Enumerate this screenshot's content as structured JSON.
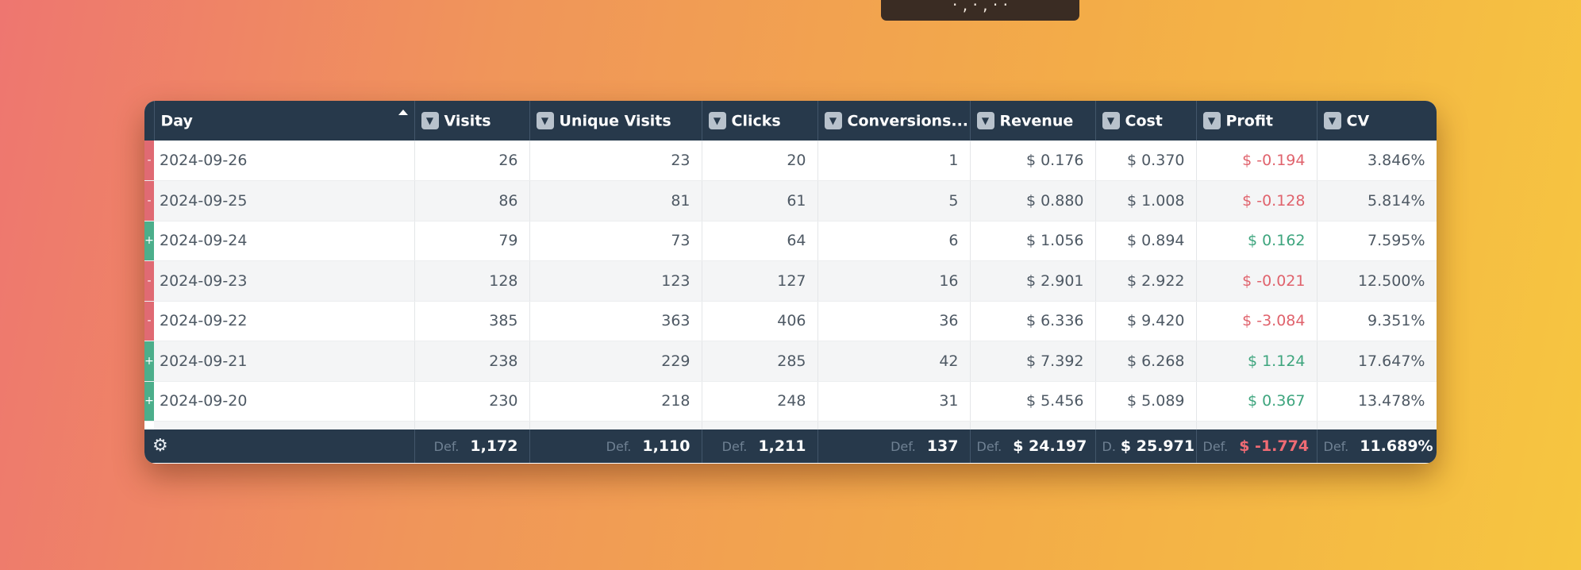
{
  "top_tab": {
    "text": "· , · , · ·"
  },
  "columns": {
    "day": "Day",
    "visits": "Visits",
    "unique_visits": "Unique Visits",
    "clicks": "Clicks",
    "conversions": "Conversions...",
    "revenue": "Revenue",
    "cost": "Cost",
    "profit": "Profit",
    "cv": "CV"
  },
  "icons": {
    "filter": "filter-dropdown-icon",
    "sort": "sort-ascending-icon",
    "settings": "gear-icon"
  },
  "colors": {
    "header_bg": "#27394b",
    "negative": "#e06a73",
    "positive": "#4cae8b"
  },
  "rows": [
    {
      "indicator": "-",
      "trend": "neg",
      "day": "2024-09-26",
      "visits": "26",
      "unique_visits": "23",
      "clicks": "20",
      "conversions": "1",
      "revenue": "$ 0.176",
      "cost": "$ 0.370",
      "profit": "$ -0.194",
      "cv": "3.846%"
    },
    {
      "indicator": "-",
      "trend": "neg",
      "day": "2024-09-25",
      "visits": "86",
      "unique_visits": "81",
      "clicks": "61",
      "conversions": "5",
      "revenue": "$ 0.880",
      "cost": "$ 1.008",
      "profit": "$ -0.128",
      "cv": "5.814%"
    },
    {
      "indicator": "+",
      "trend": "pos",
      "day": "2024-09-24",
      "visits": "79",
      "unique_visits": "73",
      "clicks": "64",
      "conversions": "6",
      "revenue": "$ 1.056",
      "cost": "$ 0.894",
      "profit": "$ 0.162",
      "cv": "7.595%"
    },
    {
      "indicator": "-",
      "trend": "neg",
      "day": "2024-09-23",
      "visits": "128",
      "unique_visits": "123",
      "clicks": "127",
      "conversions": "16",
      "revenue": "$ 2.901",
      "cost": "$ 2.922",
      "profit": "$ -0.021",
      "cv": "12.500%"
    },
    {
      "indicator": "-",
      "trend": "neg",
      "day": "2024-09-22",
      "visits": "385",
      "unique_visits": "363",
      "clicks": "406",
      "conversions": "36",
      "revenue": "$ 6.336",
      "cost": "$ 9.420",
      "profit": "$ -3.084",
      "cv": "9.351%"
    },
    {
      "indicator": "+",
      "trend": "pos",
      "day": "2024-09-21",
      "visits": "238",
      "unique_visits": "229",
      "clicks": "285",
      "conversions": "42",
      "revenue": "$ 7.392",
      "cost": "$ 6.268",
      "profit": "$ 1.124",
      "cv": "17.647%"
    },
    {
      "indicator": "+",
      "trend": "pos",
      "day": "2024-09-20",
      "visits": "230",
      "unique_visits": "218",
      "clicks": "248",
      "conversions": "31",
      "revenue": "$ 5.456",
      "cost": "$ 5.089",
      "profit": "$ 0.367",
      "cv": "13.478%"
    }
  ],
  "footer": {
    "visits": {
      "label": "Def.",
      "value": "1,172"
    },
    "unique_visits": {
      "label": "Def.",
      "value": "1,110"
    },
    "clicks": {
      "label": "Def.",
      "value": "1,211"
    },
    "conversions": {
      "label": "Def.",
      "value": "137"
    },
    "revenue": {
      "label": "Def.",
      "value": "$ 24.197"
    },
    "cost": {
      "label": "D.",
      "value": "$ 25.971"
    },
    "profit": {
      "label": "Def.",
      "value": "$ -1.774"
    },
    "cv": {
      "label": "Def.",
      "value": "11.689%"
    }
  }
}
